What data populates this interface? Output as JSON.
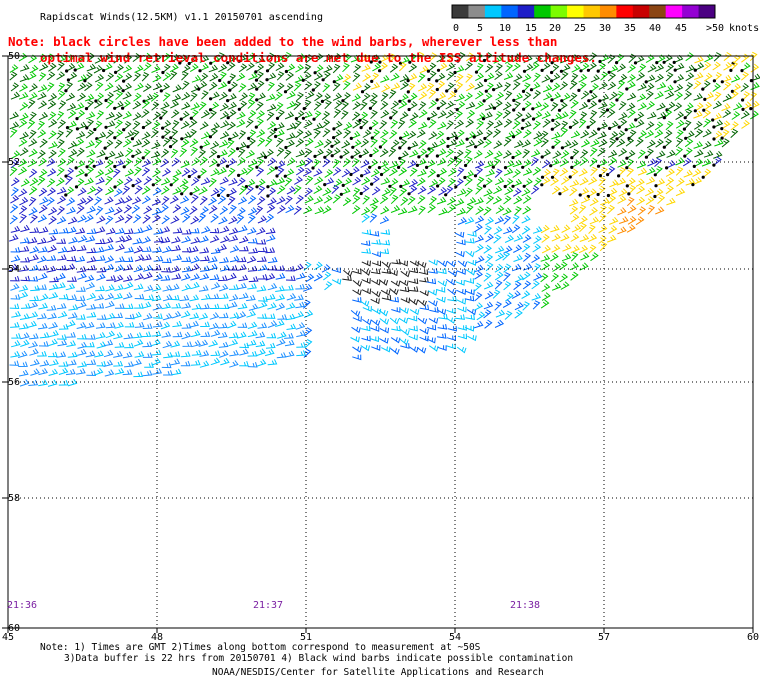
{
  "title": "Rapidscat Winds(12.5KM) v1.1 20150701 ascending",
  "note": {
    "line1": "Note: black circles have been added to the wind barbs, wherever less than",
    "line2": "optimal wind retrieval conditions are met due to the ISS altitude changes."
  },
  "legend": {
    "unit": "knots",
    "labels": [
      "0",
      "5",
      "10",
      "15",
      "20",
      "25",
      "30",
      "35",
      "40",
      "45",
      ">50"
    ],
    "colors": [
      "#3a3a3a",
      "#8c8c8c",
      "#00c8ff",
      "#0066ff",
      "#1e1ec8",
      "#00c800",
      "#7cfc00",
      "#ffff00",
      "#ffc800",
      "#ff8c00",
      "#ff0000",
      "#c80000",
      "#8b4513",
      "#ff00ff",
      "#9400d3",
      "#4b0082"
    ]
  },
  "map": {
    "lon_labels": [
      "45",
      "48",
      "51",
      "54",
      "57",
      "60"
    ],
    "lat_labels": [
      "-50",
      "-52",
      "-54",
      "-56",
      "-58",
      "-60"
    ],
    "lon_range": [
      45,
      60
    ],
    "lat_range": [
      -50,
      -60
    ],
    "times": [
      "21:36",
      "21:37",
      "21:38"
    ]
  },
  "footer": {
    "line1": "Note: 1) Times are GMT 2)Times along bottom correspond to measurement at ~50S",
    "line2": "3)Data buffer is 22 hrs from 20150701 4) Black wind barbs indicate possible contamination",
    "line3": "NOAA/NESDIS/Center for Satellite Applications and Research"
  }
}
